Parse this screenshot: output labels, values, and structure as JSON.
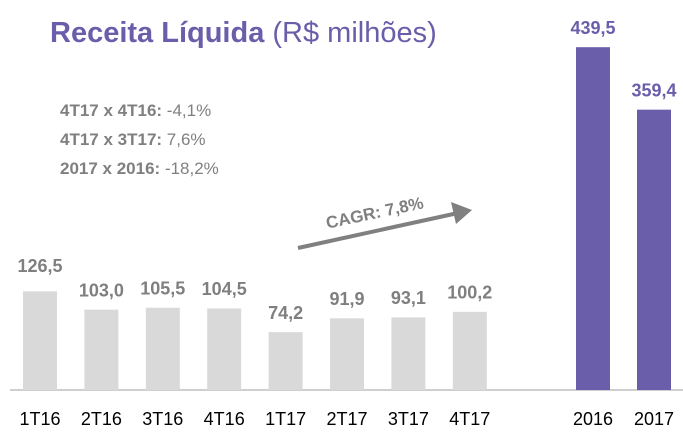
{
  "chart_data": [
    {
      "type": "bar",
      "title": "Receita Líquida",
      "subtitle": "(R$ milhões)",
      "categories": [
        "1T16",
        "2T16",
        "3T16",
        "4T16",
        "1T17",
        "2T17",
        "3T17",
        "4T17"
      ],
      "values": [
        126.5,
        103.0,
        105.5,
        104.5,
        74.2,
        91.9,
        93.1,
        100.2
      ],
      "value_labels": [
        "126,5",
        "103,0",
        "105,5",
        "104,5",
        "74,2",
        "91,9",
        "93,1",
        "100,2"
      ],
      "color": "#d9d9d9",
      "ylim": [
        0,
        500
      ],
      "annotations": [
        {
          "label": "4T17 x 4T16:",
          "value": "-4,1%"
        },
        {
          "label": "4T17 x 3T17:",
          "value": "7,6%"
        },
        {
          "label": "2017 x 2016:",
          "value": "-18,2%"
        }
      ],
      "trend_label": "CAGR: 7,8%"
    },
    {
      "type": "bar",
      "categories": [
        "2016",
        "2017"
      ],
      "values": [
        439.5,
        359.4
      ],
      "value_labels": [
        "439,5",
        "359,4"
      ],
      "color": "#6a5eab",
      "ylim": [
        0,
        500
      ]
    }
  ]
}
